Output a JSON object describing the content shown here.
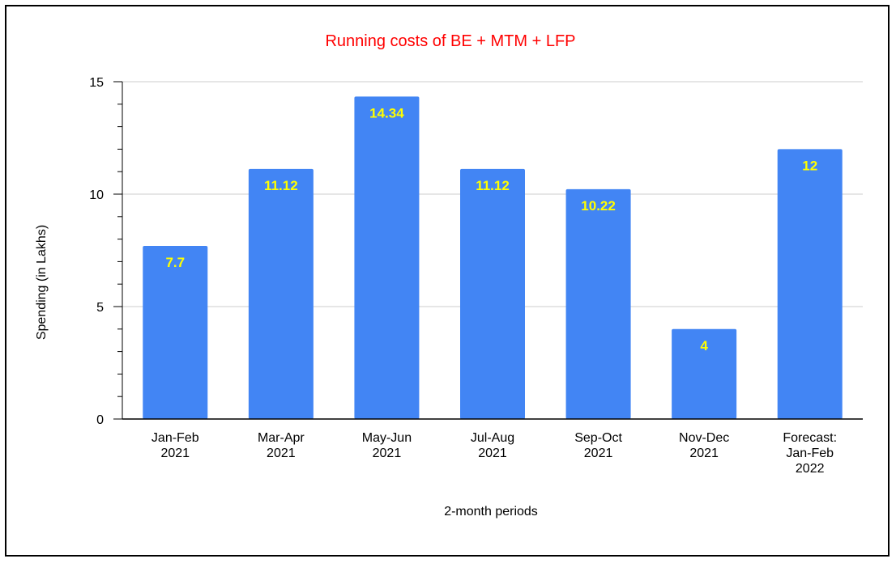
{
  "chart_data": {
    "type": "bar",
    "title": "Running costs of BE + MTM + LFP",
    "xlabel": "2-month periods",
    "ylabel": "Spending (in Lakhs)",
    "ylim": [
      0,
      15
    ],
    "yticks": [
      "0",
      "5",
      "10",
      "15"
    ],
    "categories": [
      [
        "Jan-Feb",
        "2021"
      ],
      [
        "Mar-Apr",
        "2021"
      ],
      [
        "May-Jun",
        "2021"
      ],
      [
        "Jul-Aug",
        "2021"
      ],
      [
        "Sep-Oct",
        "2021"
      ],
      [
        "Nov-Dec",
        "2021"
      ],
      [
        "Forecast:",
        "Jan-Feb",
        "2022"
      ]
    ],
    "values": [
      7.7,
      11.12,
      14.34,
      11.12,
      10.22,
      4,
      12
    ],
    "data_labels": [
      "7.7",
      "11.12",
      "14.34",
      "11.12",
      "10.22",
      "4",
      "12"
    ],
    "grid": true,
    "colors": {
      "bar": "#4285f4",
      "data_label": "#ffff00",
      "title": "#ff0000",
      "grid": "#cccccc",
      "axis": "#000000"
    }
  }
}
